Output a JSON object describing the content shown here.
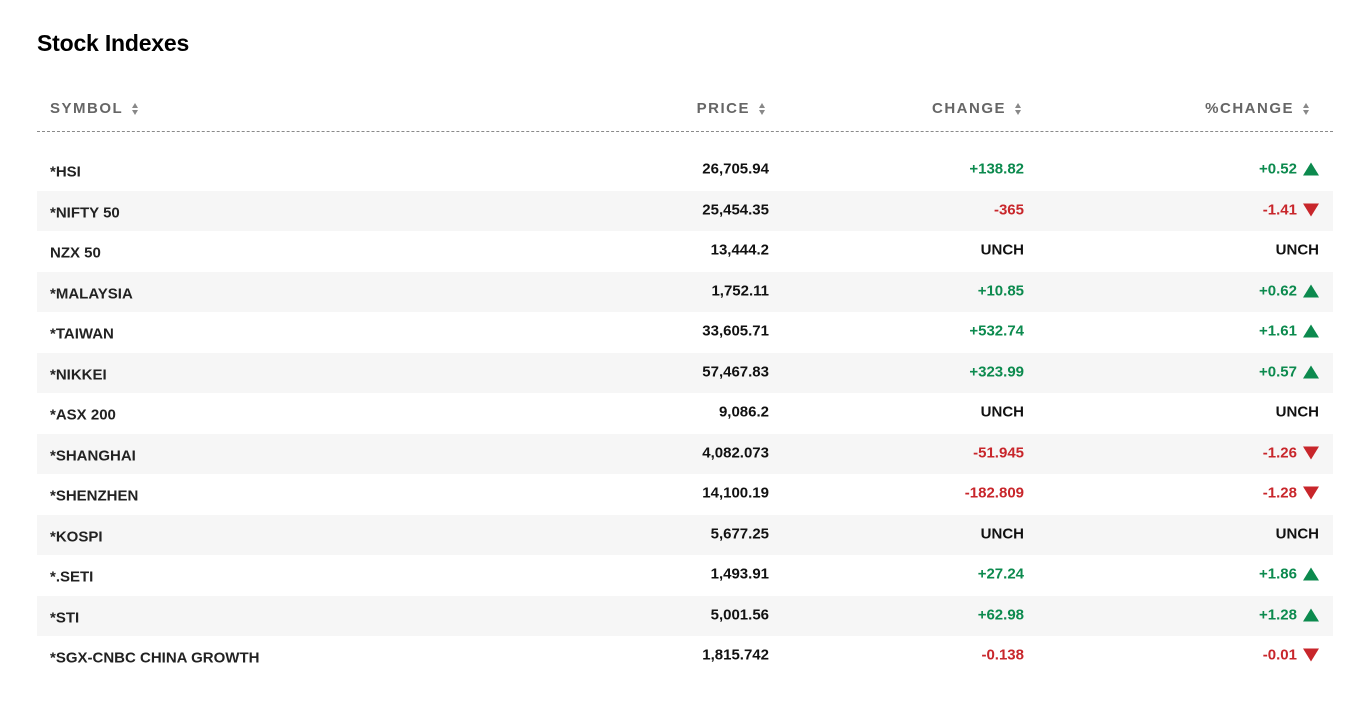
{
  "title": "Stock Indexes",
  "columns": {
    "symbol": "SYMBOL",
    "price": "PRICE",
    "change": "CHANGE",
    "pct_change": "%CHANGE"
  },
  "colors": {
    "positive": "#0c8a4e",
    "negative": "#c8262b",
    "unchanged": "#111111"
  },
  "rows": [
    {
      "symbol": "*HSI",
      "price": "26,705.94",
      "change": "+138.82",
      "pct": "+0.52",
      "dir": "up"
    },
    {
      "symbol": "*NIFTY 50",
      "price": "25,454.35",
      "change": "-365",
      "pct": "-1.41",
      "dir": "down"
    },
    {
      "symbol": "NZX 50",
      "price": "13,444.2",
      "change": "UNCH",
      "pct": "UNCH",
      "dir": "none"
    },
    {
      "symbol": "*MALAYSIA",
      "price": "1,752.11",
      "change": "+10.85",
      "pct": "+0.62",
      "dir": "up"
    },
    {
      "symbol": "*TAIWAN",
      "price": "33,605.71",
      "change": "+532.74",
      "pct": "+1.61",
      "dir": "up"
    },
    {
      "symbol": "*NIKKEI",
      "price": "57,467.83",
      "change": "+323.99",
      "pct": "+0.57",
      "dir": "up"
    },
    {
      "symbol": "*ASX 200",
      "price": "9,086.2",
      "change": "UNCH",
      "pct": "UNCH",
      "dir": "none"
    },
    {
      "symbol": "*SHANGHAI",
      "price": "4,082.073",
      "change": "-51.945",
      "pct": "-1.26",
      "dir": "down"
    },
    {
      "symbol": "*SHENZHEN",
      "price": "14,100.19",
      "change": "-182.809",
      "pct": "-1.28",
      "dir": "down"
    },
    {
      "symbol": "*KOSPI",
      "price": "5,677.25",
      "change": "UNCH",
      "pct": "UNCH",
      "dir": "none"
    },
    {
      "symbol": "*.SETI",
      "price": "1,493.91",
      "change": "+27.24",
      "pct": "+1.86",
      "dir": "up"
    },
    {
      "symbol": "*STI",
      "price": "5,001.56",
      "change": "+62.98",
      "pct": "+1.28",
      "dir": "up"
    },
    {
      "symbol": "*SGX-CNBC CHINA GROWTH",
      "price": "1,815.742",
      "change": "-0.138",
      "pct": "-0.01",
      "dir": "down"
    }
  ]
}
